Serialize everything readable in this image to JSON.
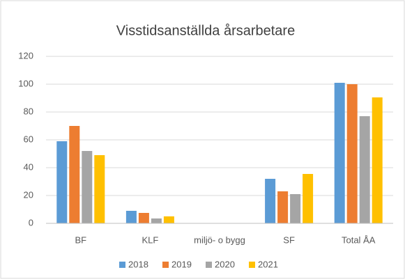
{
  "chart_data": {
    "type": "bar",
    "title": "Visstidsanställda årsarbetare",
    "categories": [
      "BF",
      "KLF",
      "miljö- o bygg",
      "SF",
      "Total ÅA"
    ],
    "series": [
      {
        "name": "2018",
        "color": "#5b9bd5",
        "values": [
          59,
          9,
          0,
          32,
          101
        ]
      },
      {
        "name": "2019",
        "color": "#ed7d31",
        "values": [
          70,
          7.5,
          0,
          23,
          100
        ]
      },
      {
        "name": "2020",
        "color": "#a5a5a5",
        "values": [
          52,
          3.5,
          0,
          21,
          77
        ]
      },
      {
        "name": "2021",
        "color": "#ffc000",
        "values": [
          49,
          5,
          0,
          35.5,
          90.5
        ]
      }
    ],
    "ylim": [
      0,
      120
    ],
    "yticks": [
      0,
      20,
      40,
      60,
      80,
      100,
      120
    ],
    "grid": true,
    "legend": "bottom"
  }
}
